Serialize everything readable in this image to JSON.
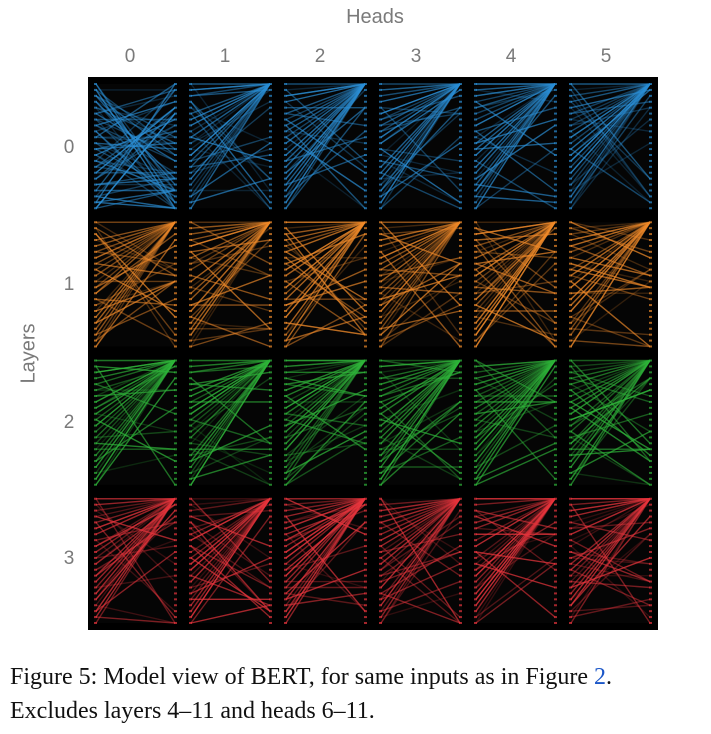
{
  "figure": {
    "heads_title": "Heads",
    "layers_title": "Layers",
    "head_labels": [
      "0",
      "1",
      "2",
      "3",
      "4",
      "5"
    ],
    "layer_labels": [
      "0",
      "1",
      "2",
      "3"
    ],
    "layer_colors": [
      "#2b8fd6",
      "#f08a2a",
      "#2fb53a",
      "#e8353d"
    ]
  },
  "caption": {
    "prefix": "Figure 5: Model view of BERT, for same inputs as in Figure ",
    "ref": "2",
    "suffix": ". Excludes layers 4–11 and heads 6–11."
  }
}
